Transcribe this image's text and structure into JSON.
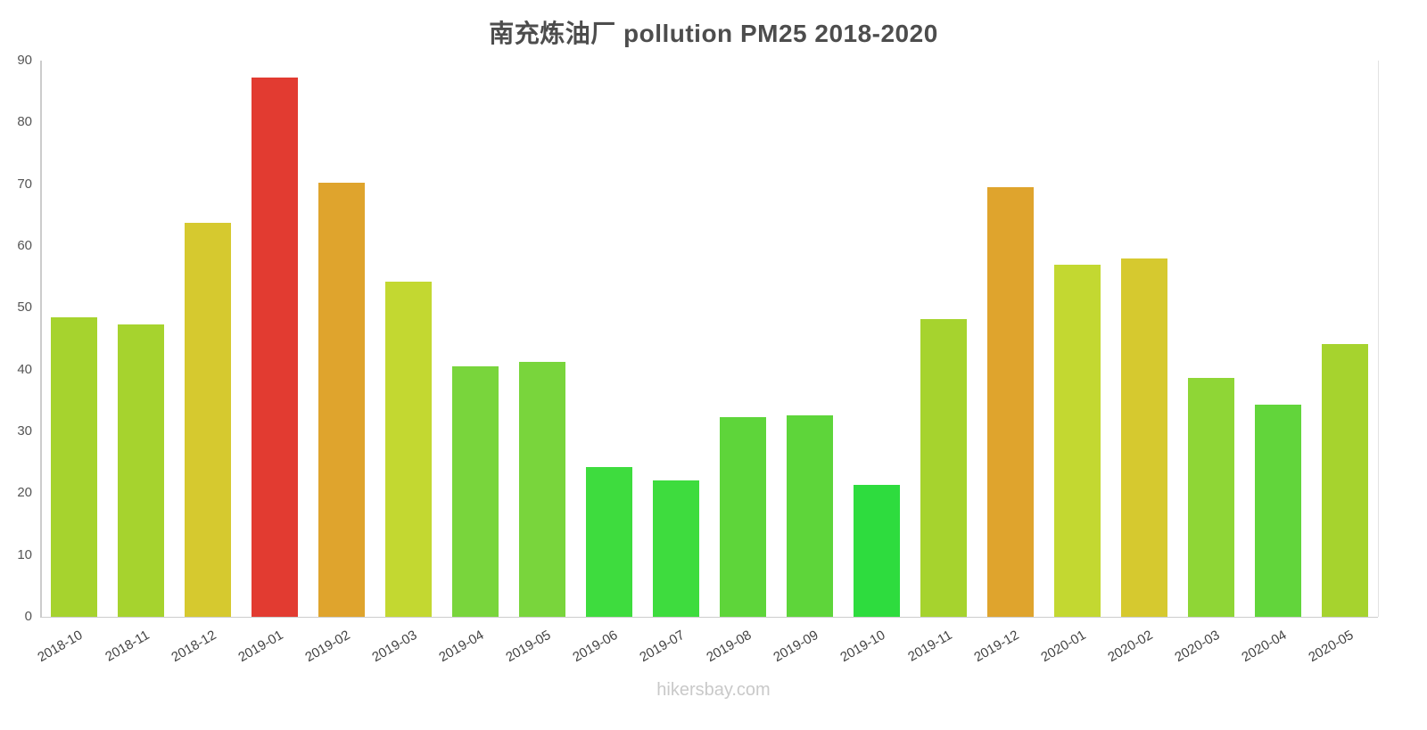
{
  "chart_data": {
    "type": "bar",
    "title": "南充炼油厂 pollution PM25 2018-2020",
    "categories": [
      "2018-10",
      "2018-11",
      "2018-12",
      "2019-01",
      "2019-02",
      "2019-03",
      "2019-04",
      "2019-05",
      "2019-06",
      "2019-07",
      "2019-08",
      "2019-09",
      "2019-10",
      "2019-11",
      "2019-12",
      "2020-01",
      "2020-02",
      "2020-03",
      "2020-04",
      "2020-05"
    ],
    "values": [
      48.5,
      47.3,
      63.7,
      87.3,
      70.2,
      54.3,
      40.6,
      41.2,
      24.3,
      22.1,
      32.3,
      32.6,
      21.3,
      48.2,
      69.5,
      57.0,
      58.0,
      38.7,
      34.3,
      44.2
    ],
    "bar_colors": [
      "#a6d32e",
      "#a6d32e",
      "#d6c92f",
      "#e23b31",
      "#dfa42d",
      "#c3d831",
      "#79d53c",
      "#79d53c",
      "#3edc3e",
      "#3edc3e",
      "#5ed53a",
      "#5ed53a",
      "#2edc3e",
      "#a6d32e",
      "#dfa42d",
      "#c3d831",
      "#d6c92f",
      "#8fd636",
      "#62d53b",
      "#a6d32e"
    ],
    "ylim": [
      0,
      90
    ],
    "yticks": [
      0,
      10,
      20,
      30,
      40,
      50,
      60,
      70,
      80,
      90
    ],
    "grid": false,
    "legend_position": "none",
    "xlabel": "",
    "ylabel": ""
  },
  "footer": {
    "text": "hikersbay.com"
  },
  "colors": {
    "axis": "#cccccc",
    "tick_text": "#555555",
    "title_text": "#4d4d4d",
    "footer_text": "#c9c9c9"
  }
}
